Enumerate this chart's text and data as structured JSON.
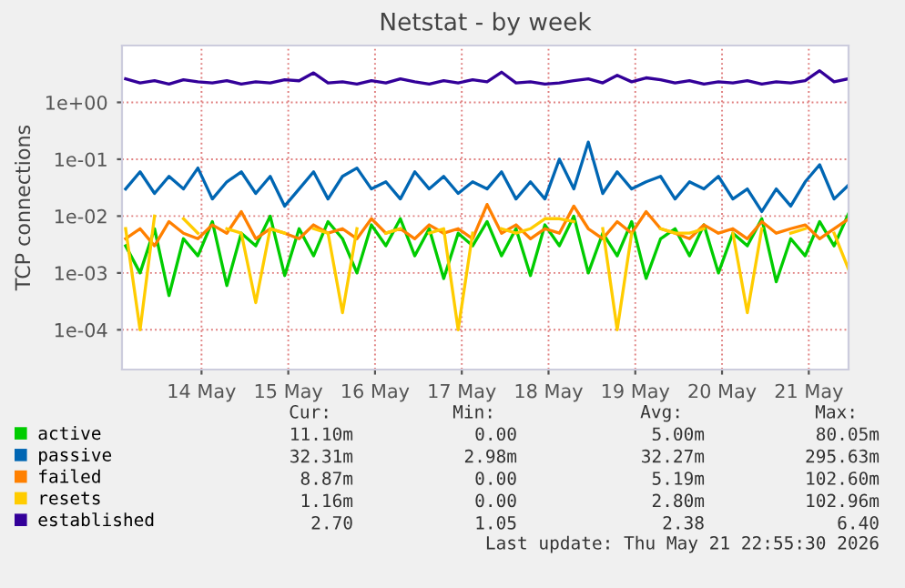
{
  "chart_data": {
    "type": "line",
    "title": "Netstat - by week",
    "ylabel": "TCP connections",
    "log": "y",
    "grid": true,
    "legend": "bottom",
    "marker": "none",
    "line_style": "solid",
    "x": [
      "2026-05-13T03:00",
      "2026-05-13T07:00",
      "2026-05-13T11:00",
      "2026-05-13T15:00",
      "2026-05-13T19:00",
      "2026-05-13T23:00",
      "2026-05-14T03:00",
      "2026-05-14T07:00",
      "2026-05-14T11:00",
      "2026-05-14T15:00",
      "2026-05-14T19:00",
      "2026-05-14T23:00",
      "2026-05-15T03:00",
      "2026-05-15T07:00",
      "2026-05-15T11:00",
      "2026-05-15T15:00",
      "2026-05-15T19:00",
      "2026-05-15T23:00",
      "2026-05-16T03:00",
      "2026-05-16T07:00",
      "2026-05-16T11:00",
      "2026-05-16T15:00",
      "2026-05-16T19:00",
      "2026-05-16T23:00",
      "2026-05-17T03:00",
      "2026-05-17T07:00",
      "2026-05-17T11:00",
      "2026-05-17T15:00",
      "2026-05-17T19:00",
      "2026-05-17T23:00",
      "2026-05-18T03:00",
      "2026-05-18T07:00",
      "2026-05-18T11:00",
      "2026-05-18T15:00",
      "2026-05-18T19:00",
      "2026-05-18T23:00",
      "2026-05-19T03:00",
      "2026-05-19T07:00",
      "2026-05-19T11:00",
      "2026-05-19T15:00",
      "2026-05-19T19:00",
      "2026-05-19T23:00",
      "2026-05-20T03:00",
      "2026-05-20T07:00",
      "2026-05-20T11:00",
      "2026-05-20T15:00",
      "2026-05-20T19:00",
      "2026-05-20T23:00",
      "2026-05-21T03:00",
      "2026-05-21T07:00",
      "2026-05-21T11:00"
    ],
    "xlim": [
      "2026-05-13T02:00",
      "2026-05-21T11:00"
    ],
    "xticks": [
      {
        "value": "2026-05-14",
        "label": "14 May"
      },
      {
        "value": "2026-05-15",
        "label": "15 May"
      },
      {
        "value": "2026-05-16",
        "label": "16 May"
      },
      {
        "value": "2026-05-17",
        "label": "17 May"
      },
      {
        "value": "2026-05-18",
        "label": "18 May"
      },
      {
        "value": "2026-05-19",
        "label": "19 May"
      },
      {
        "value": "2026-05-20",
        "label": "20 May"
      },
      {
        "value": "2026-05-21",
        "label": "21 May"
      }
    ],
    "ylim": [
      2e-05,
      10
    ],
    "yticks": [
      {
        "value": 0.0001,
        "label": "1e-04"
      },
      {
        "value": 0.001,
        "label": "1e-03"
      },
      {
        "value": 0.01,
        "label": "1e-02"
      },
      {
        "value": 0.1,
        "label": "1e-01"
      },
      {
        "value": 1,
        "label": "1e+00"
      }
    ],
    "series": [
      {
        "name": "active",
        "color": "#00cc00",
        "values": [
          0.003,
          0.001,
          0.006,
          0.0004,
          0.004,
          0.002,
          0.008,
          0.0006,
          0.005,
          0.003,
          0.01,
          0.0009,
          0.006,
          0.002,
          0.008,
          0.004,
          0.001,
          0.007,
          0.003,
          0.009,
          0.002,
          0.006,
          0.0008,
          0.005,
          0.003,
          0.008,
          0.002,
          0.006,
          0.0009,
          0.007,
          0.003,
          0.01,
          0.001,
          0.005,
          0.002,
          0.008,
          0.0008,
          0.004,
          0.006,
          0.002,
          0.007,
          0.001,
          0.005,
          0.003,
          0.009,
          0.0007,
          0.004,
          0.002,
          0.008,
          0.003,
          0.011
        ]
      },
      {
        "name": "passive",
        "color": "#0066b3",
        "values": [
          0.03,
          0.06,
          0.025,
          0.05,
          0.03,
          0.07,
          0.02,
          0.04,
          0.06,
          0.025,
          0.05,
          0.015,
          0.03,
          0.06,
          0.02,
          0.05,
          0.07,
          0.03,
          0.04,
          0.02,
          0.06,
          0.03,
          0.05,
          0.025,
          0.04,
          0.03,
          0.06,
          0.02,
          0.04,
          0.02,
          0.1,
          0.03,
          0.2,
          0.025,
          0.06,
          0.03,
          0.04,
          0.05,
          0.02,
          0.04,
          0.03,
          0.05,
          0.02,
          0.03,
          0.012,
          0.03,
          0.015,
          0.04,
          0.08,
          0.02,
          0.035
        ]
      },
      {
        "name": "failed",
        "color": "#ff8000",
        "values": [
          0.004,
          0.006,
          0.003,
          0.008,
          0.005,
          0.004,
          0.007,
          0.005,
          0.012,
          0.004,
          0.006,
          0.005,
          0.004,
          0.007,
          0.005,
          0.006,
          0.004,
          0.009,
          0.005,
          0.006,
          0.004,
          0.007,
          0.005,
          0.006,
          0.004,
          0.016,
          0.005,
          0.007,
          0.004,
          0.006,
          0.005,
          0.015,
          0.006,
          0.004,
          0.008,
          0.005,
          0.012,
          0.006,
          0.005,
          0.004,
          0.007,
          0.005,
          0.006,
          0.004,
          0.008,
          0.005,
          0.006,
          0.007,
          0.004,
          0.006,
          0.0089
        ]
      },
      {
        "name": "resets",
        "color": "#ffcc00",
        "values": [
          0.006,
          0.0001,
          0.01,
          null,
          0.009,
          0.005,
          null,
          0.006,
          0.005,
          0.0003,
          0.006,
          0.005,
          null,
          0.006,
          0.005,
          0.0002,
          0.006,
          null,
          0.005,
          0.006,
          null,
          0.005,
          0.006,
          0.0001,
          0.005,
          null,
          0.006,
          0.005,
          0.006,
          0.009,
          0.009,
          0.008,
          null,
          0.006,
          0.0001,
          0.005,
          null,
          0.006,
          0.005,
          0.005,
          0.006,
          null,
          0.005,
          0.0002,
          0.006,
          null,
          0.005,
          0.006,
          null,
          0.005,
          0.00116
        ]
      },
      {
        "name": "established",
        "color": "#330099",
        "values": [
          2.6,
          2.2,
          2.4,
          2.1,
          2.5,
          2.3,
          2.2,
          2.4,
          2.1,
          2.3,
          2.2,
          2.5,
          2.4,
          3.3,
          2.2,
          2.3,
          2.1,
          2.4,
          2.2,
          2.6,
          2.3,
          2.1,
          2.4,
          2.2,
          2.5,
          2.3,
          3.4,
          2.2,
          2.3,
          2.1,
          2.2,
          2.4,
          2.6,
          2.2,
          3.0,
          2.3,
          2.7,
          2.5,
          2.2,
          2.4,
          2.1,
          2.3,
          2.2,
          2.4,
          2.1,
          2.3,
          2.2,
          2.4,
          3.6,
          2.3,
          2.6
        ]
      }
    ],
    "annotations": [
      "Cur:",
      "Min:",
      "Avg:",
      "Max:",
      "11.10m",
      "0.00",
      "5.00m",
      "80.05m",
      "32.31m",
      "2.98m",
      "32.27m",
      "295.63m",
      "8.87m",
      "0.00",
      "5.19m",
      "102.60m",
      "1.16m",
      "0.00",
      "2.80m",
      "102.96m",
      "2.70",
      "1.05",
      "2.38",
      "6.40",
      "Last update: Thu May 21 22:55:30 2026"
    ]
  }
}
